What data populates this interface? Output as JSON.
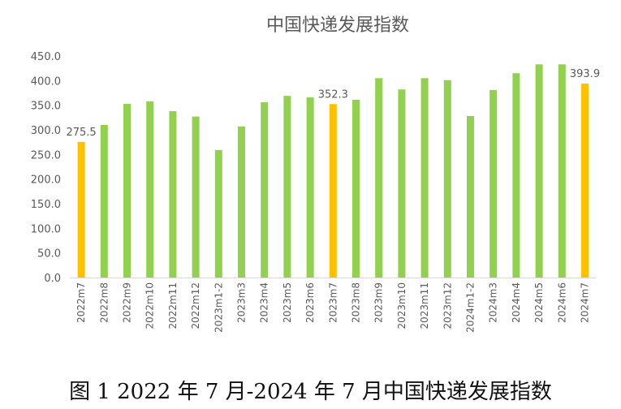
{
  "chart_data": {
    "type": "bar",
    "title": "中国快递发展指数",
    "categories": [
      "2022m7",
      "2022m8",
      "2022m9",
      "2022m10",
      "2022m11",
      "2022m12",
      "2023m1-2",
      "2023m3",
      "2023m4",
      "2023m5",
      "2023m6",
      "2023m7",
      "2023m8",
      "2023m9",
      "2023m10",
      "2023m11",
      "2023m12",
      "2024m1-2",
      "2024m3",
      "2024m4",
      "2024m5",
      "2024m6",
      "2024m7"
    ],
    "values": [
      275.5,
      310,
      353,
      358,
      338,
      327,
      259,
      307,
      356,
      369,
      366,
      352.3,
      361,
      405,
      382,
      405,
      401,
      328,
      381,
      415,
      433,
      433,
      393.9
    ],
    "highlighted": [
      "2022m7",
      "2023m7",
      "2024m7"
    ],
    "data_labels": {
      "2022m7": "275.5",
      "2023m7": "352.3",
      "2024m7": "393.9"
    },
    "ylim": [
      0,
      450
    ],
    "yticks": [
      "0.0",
      "50.0",
      "100.0",
      "150.0",
      "200.0",
      "250.0",
      "300.0",
      "350.0",
      "400.0",
      "450.0"
    ],
    "xlabel": "",
    "ylabel": "",
    "grid": false,
    "colors": {
      "bar": "#92D050",
      "highlight": "#FFC000",
      "axis": "#D9D9D9",
      "text": "#595959"
    }
  },
  "caption": "图 1 2022 年 7 月-2024 年 7 月中国快递发展指数"
}
